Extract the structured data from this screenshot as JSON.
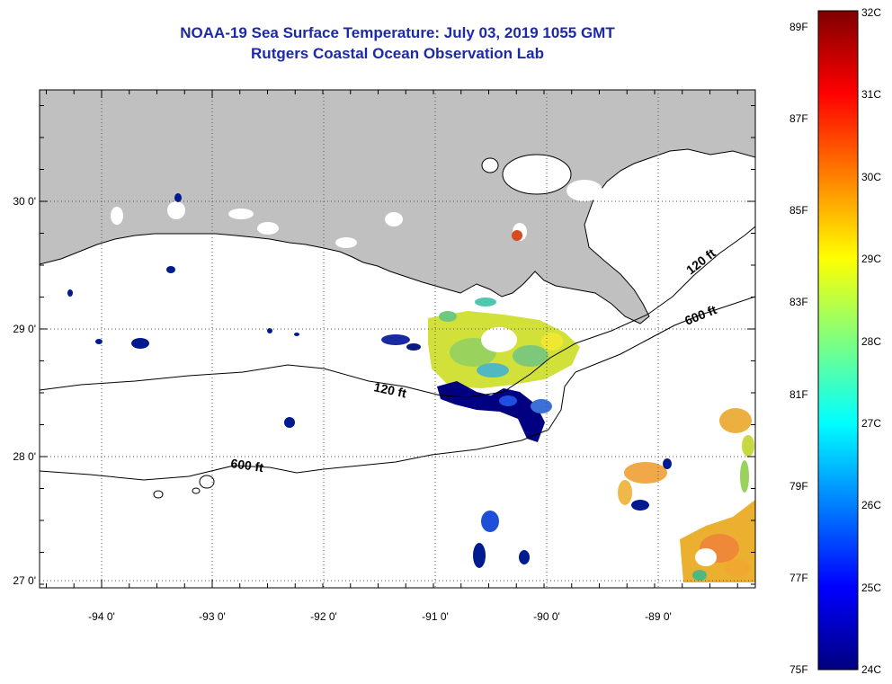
{
  "header": {
    "title": "NOAA-19 Sea Surface Temperature:  July 03, 2019 1055 GMT",
    "subtitle": "Rutgers Coastal Ocean Observation Lab"
  },
  "map": {
    "lon_ticks": [
      "-94 0'",
      "-93 0'",
      "-92 0'",
      "-91 0'",
      "-90 0'",
      "-89 0'"
    ],
    "lat_ticks": [
      "30 0'",
      "29 0'",
      "28 0'",
      "27 0'"
    ],
    "contour_labels": [
      "120 ft",
      "120 ft",
      "600 ft",
      "600 ft"
    ],
    "colors": {
      "land": "#c0c0c0",
      "ocean_nodata": "#ffffff",
      "grid": "#555555"
    }
  },
  "colorbar": {
    "fahrenheit_labels": [
      "89F",
      "87F",
      "85F",
      "83F",
      "81F",
      "79F",
      "77F",
      "75F"
    ],
    "celsius_labels": [
      "32C",
      "31C",
      "30C",
      "29C",
      "28C",
      "27C",
      "26C",
      "25C",
      "24C"
    ],
    "colors": [
      "#00007f",
      "#0000ff",
      "#007fff",
      "#00ffff",
      "#7fff7f",
      "#ffff00",
      "#ff7f00",
      "#ff0000",
      "#7f0000"
    ]
  }
}
